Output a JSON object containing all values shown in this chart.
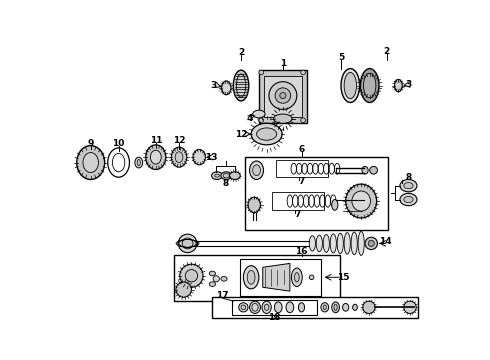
{
  "bg_color": "#ffffff",
  "line_color": "#000000",
  "text_color": "#000000",
  "fig_width": 4.9,
  "fig_height": 3.6,
  "dpi": 100,
  "gray_light": "#c8c8c8",
  "gray_mid": "#a0a0a0",
  "gray_dark": "#707070"
}
